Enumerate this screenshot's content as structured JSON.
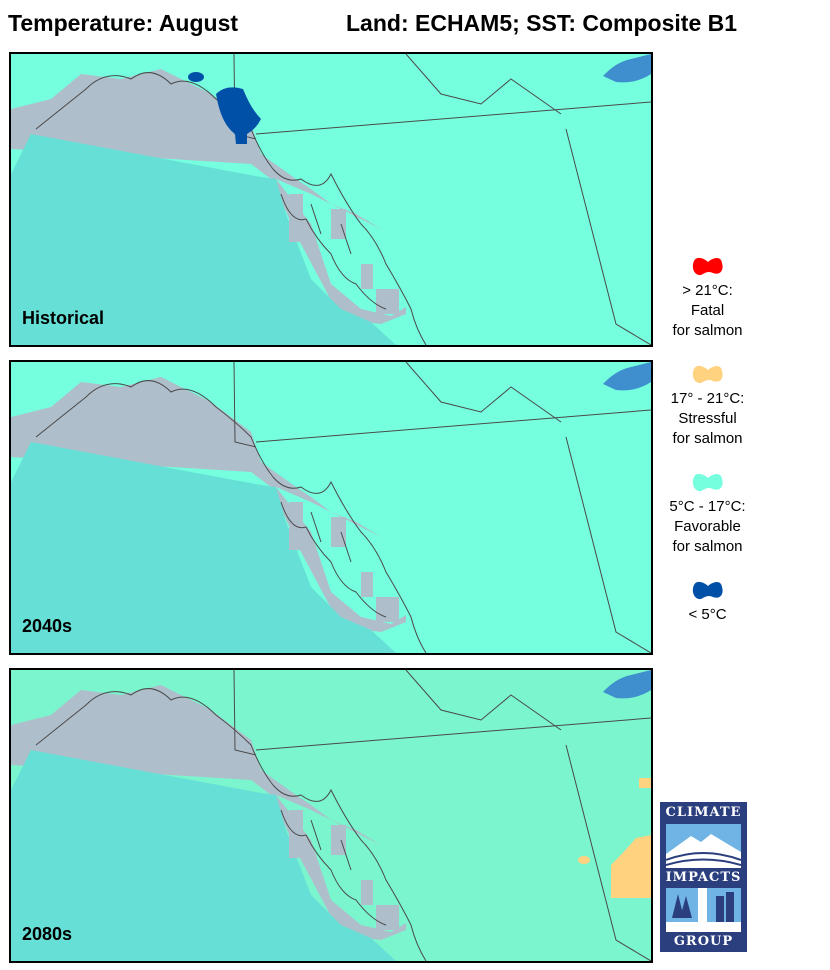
{
  "header": {
    "title": "Temperature: August",
    "scenario": "Land: ECHAM5; SST: Composite B1"
  },
  "panels": [
    {
      "label": "Historical",
      "land_color": "#75FFDE",
      "has_cold_lake": true,
      "has_stress_area": false
    },
    {
      "label": "2040s",
      "land_color": "#75FFDE",
      "has_cold_lake": false,
      "has_stress_area": false
    },
    {
      "label": "2080s",
      "land_color": "#7AF5CD",
      "has_cold_lake": false,
      "has_stress_area": true
    }
  ],
  "map_colors": {
    "ocean": "#66E0D6",
    "no_data_strip": "#AFBECB",
    "border_lines": "#4a4a4a",
    "lake": "#3F8FCF"
  },
  "legend": [
    {
      "line1": "> 21°C:",
      "line2": "Fatal",
      "line3": "for salmon",
      "color": "#FF0000"
    },
    {
      "line1": "17° - 21°C:",
      "line2": "Stressful",
      "line3": "for salmon",
      "color": "#FFD280"
    },
    {
      "line1": "5°C - 17°C:",
      "line2": "Favorable",
      "line3": "for salmon",
      "color": "#75FFDE"
    },
    {
      "line1": "< 5°C",
      "line2": "",
      "line3": "",
      "color": "#0050A8"
    }
  ],
  "logo": {
    "line1": "CLIMATE",
    "line2": "IMPACTS",
    "line3": "GROUP"
  }
}
